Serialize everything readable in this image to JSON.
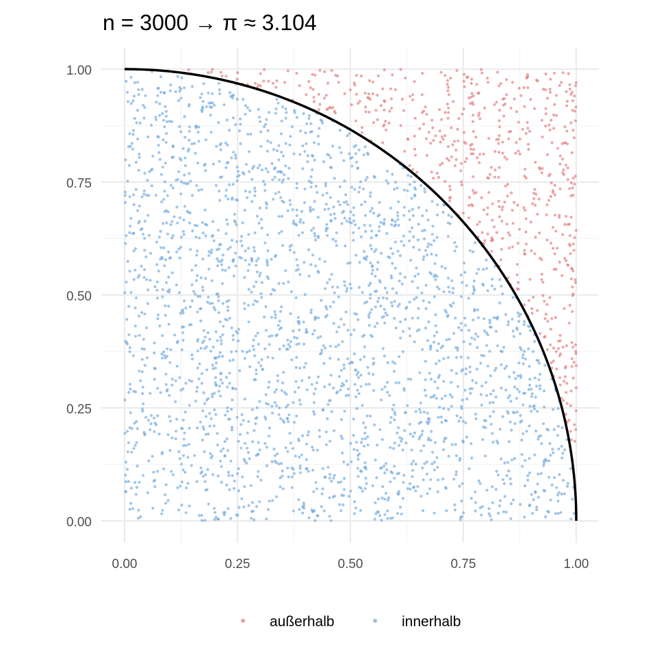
{
  "chart_data": {
    "type": "scatter",
    "title": "n = 3000  →  π ≈ 3.104",
    "xlabel": "",
    "ylabel": "",
    "xlim": [
      0,
      1
    ],
    "ylim": [
      0,
      1
    ],
    "x_ticks": [
      "0.00",
      "0.25",
      "0.50",
      "0.75",
      "1.00"
    ],
    "y_ticks": [
      "0.00",
      "0.25",
      "0.50",
      "0.75",
      "1.00"
    ],
    "grid": true,
    "n_points": 3000,
    "pi_estimate": 3.104,
    "curve": "quarter circle x² + y² = 1",
    "series": [
      {
        "name": "außerhalb",
        "color": "#e07a7a",
        "count": 672
      },
      {
        "name": "innerhalb",
        "color": "#6fa8dc",
        "count": 2328
      }
    ],
    "legend_position": "bottom"
  }
}
